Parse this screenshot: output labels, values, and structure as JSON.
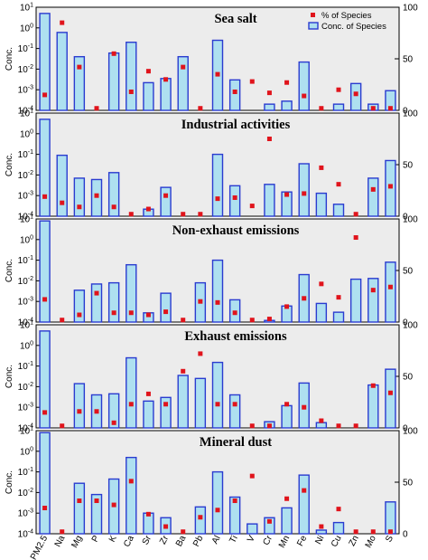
{
  "chart_data": {
    "type": "bar",
    "categories": [
      "PM2.5",
      "Na",
      "Mg",
      "P",
      "K",
      "Ca",
      "Sr",
      "Zr",
      "Ba",
      "Pb",
      "Al",
      "Ti",
      "V",
      "Cr",
      "Mn",
      "Fe",
      "Ni",
      "Cu",
      "Zn",
      "Mo",
      "S"
    ],
    "y_axis": {
      "label": "Conc.",
      "scale": "log",
      "ylim": [
        0.0001,
        10
      ],
      "tick_labels": [
        "10",
        "10",
        "10",
        "10",
        "10",
        "10"
      ],
      "tick_exponents": [
        "-4",
        "-3",
        "-2",
        "-1",
        "0",
        "1"
      ]
    },
    "y2_axis": {
      "ylim": [
        0,
        100
      ],
      "tick_labels": [
        "0",
        "50",
        "100"
      ]
    },
    "legend": {
      "position": "top-right",
      "items": [
        {
          "label": "% of Species",
          "color": "#e0141c"
        },
        {
          "label": "Conc. of Species",
          "color": "#aee0f0"
        }
      ]
    },
    "panels": [
      {
        "title": "Sea salt",
        "conc": [
          5.0,
          0.6,
          0.04,
          null,
          0.06,
          0.2,
          0.0022,
          0.0035,
          0.04,
          null,
          0.25,
          0.003,
          null,
          0.0002,
          0.00028,
          0.022,
          null,
          0.0002,
          0.002,
          0.0002,
          0.0009
        ],
        "percent": [
          15,
          85,
          42,
          2,
          55,
          18,
          38,
          30,
          42,
          2,
          35,
          18,
          28,
          17,
          27,
          14,
          2,
          20,
          16,
          2,
          2
        ]
      },
      {
        "title": "Industrial activities",
        "conc": [
          5.0,
          0.09,
          0.007,
          0.006,
          0.013,
          null,
          0.00022,
          0.0025,
          null,
          null,
          0.1,
          0.003,
          null,
          0.0035,
          0.0015,
          0.035,
          0.0013,
          0.00038,
          null,
          0.007,
          0.05
        ],
        "percent": [
          19,
          13,
          9,
          20,
          9,
          2,
          7,
          20,
          2,
          2,
          17,
          18,
          10,
          75,
          21,
          22,
          47,
          31,
          2,
          26,
          29
        ]
      },
      {
        "title": "Non-exhaust emissions",
        "conc": [
          8.0,
          null,
          0.0035,
          0.007,
          0.008,
          0.06,
          0.00028,
          0.0025,
          null,
          0.008,
          0.1,
          0.0012,
          null,
          0.00012,
          0.0006,
          0.02,
          0.0008,
          0.0003,
          0.012,
          0.013,
          0.08
        ],
        "percent": [
          22,
          2,
          7,
          28,
          9,
          9,
          7,
          10,
          2,
          20,
          19,
          9,
          2,
          3,
          15,
          23,
          37,
          24,
          82,
          31,
          34
        ]
      },
      {
        "title": "Exhaust emissions",
        "conc": [
          5.0,
          null,
          0.014,
          0.004,
          0.0045,
          0.25,
          0.002,
          0.003,
          0.035,
          0.025,
          0.15,
          0.004,
          null,
          0.0002,
          0.0012,
          0.015,
          0.00018,
          null,
          null,
          0.012,
          0.07
        ],
        "percent": [
          15,
          2,
          16,
          16,
          5,
          23,
          33,
          23,
          55,
          72,
          23,
          23,
          2,
          2,
          23,
          20,
          7,
          2,
          2,
          41,
          34
        ]
      },
      {
        "title": "Mineral dust",
        "conc": [
          8.0,
          null,
          0.028,
          0.008,
          0.045,
          0.5,
          0.001,
          0.0006,
          null,
          0.002,
          0.1,
          0.006,
          0.0003,
          0.0006,
          0.0018,
          0.07,
          0.00015,
          0.00035,
          null,
          null,
          0.0035
        ],
        "percent": [
          25,
          2,
          32,
          32,
          28,
          51,
          19,
          7,
          2,
          16,
          23,
          32,
          56,
          12,
          34,
          42,
          7,
          24,
          2,
          2,
          2
        ]
      }
    ]
  }
}
